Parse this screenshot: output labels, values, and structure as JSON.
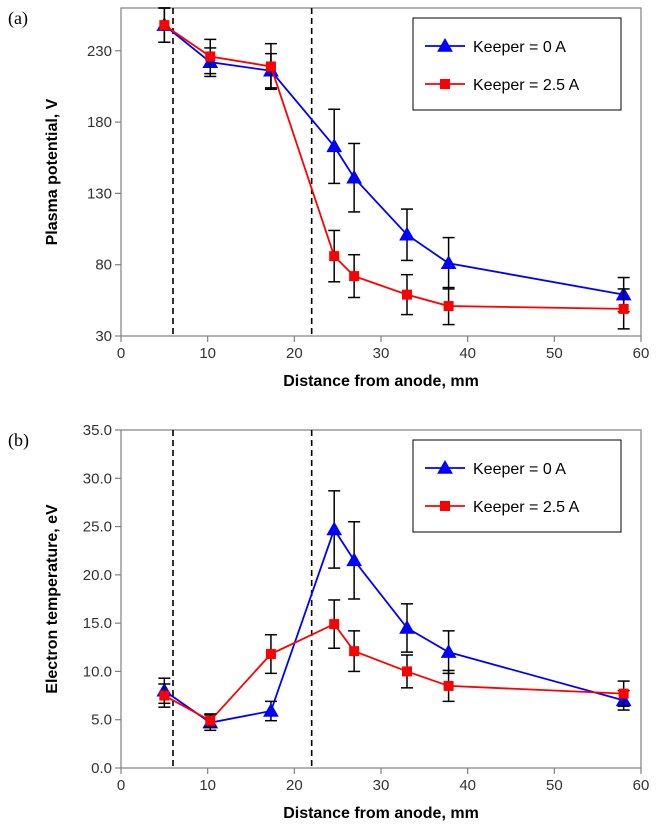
{
  "chart_data": [
    {
      "panel_label": "(a)",
      "type": "line",
      "xlabel": "Distance from anode, mm",
      "ylabel": "Plasma potential, V",
      "xlim": [
        0,
        60
      ],
      "ylim": [
        30,
        260
      ],
      "xticks": [
        0,
        10,
        20,
        30,
        40,
        50,
        60
      ],
      "yticks": [
        30,
        80,
        130,
        180,
        230
      ],
      "ytick_decimals": 0,
      "vlines": [
        6,
        22
      ],
      "legend": "top-right",
      "series": [
        {
          "name": "Keeper = 0 A",
          "color": "#0000ff",
          "marker": "triangle",
          "x": [
            5,
            10.3,
            17.3,
            24.6,
            26.9,
            33.0,
            37.8,
            58.0
          ],
          "y": [
            248,
            222,
            216,
            163,
            141,
            101,
            81,
            59
          ],
          "err": [
            12,
            10,
            12,
            26,
            24,
            18,
            18,
            12
          ]
        },
        {
          "name": "Keeper = 2.5 A",
          "color": "#ff0000",
          "marker": "square",
          "x": [
            5,
            10.3,
            17.3,
            24.6,
            26.9,
            33.0,
            37.8,
            58.0
          ],
          "y": [
            248,
            226,
            219,
            86,
            72,
            59,
            51,
            49
          ],
          "err": [
            12,
            12,
            16,
            18,
            15,
            14,
            13,
            14
          ]
        }
      ]
    },
    {
      "panel_label": "(b)",
      "type": "line",
      "xlabel": "Distance from anode, mm",
      "ylabel": "Electron temperature, eV",
      "xlim": [
        0,
        60
      ],
      "ylim": [
        0,
        35
      ],
      "xticks": [
        0,
        10,
        20,
        30,
        40,
        50,
        60
      ],
      "yticks": [
        0,
        5,
        10,
        15,
        20,
        25,
        30,
        35
      ],
      "ytick_decimals": 1,
      "vlines": [
        6,
        22
      ],
      "legend": "top-right",
      "series": [
        {
          "name": "Keeper = 0 A",
          "color": "#0000ff",
          "marker": "triangle",
          "x": [
            5,
            10.3,
            17.3,
            24.6,
            26.9,
            33.0,
            37.8,
            58.0
          ],
          "y": [
            8.0,
            4.7,
            5.9,
            24.7,
            21.5,
            14.5,
            12.0,
            7.0
          ],
          "err": [
            1.3,
            0.8,
            1.0,
            4.0,
            4.0,
            2.5,
            2.2,
            1.0
          ]
        },
        {
          "name": "Keeper = 2.5 A",
          "color": "#ff0000",
          "marker": "square",
          "x": [
            5,
            10.3,
            17.3,
            24.6,
            26.9,
            33.0,
            37.8,
            58.0
          ],
          "y": [
            7.5,
            4.9,
            11.8,
            14.9,
            12.1,
            10.0,
            8.5,
            7.7
          ],
          "err": [
            1.2,
            0.7,
            2.0,
            2.5,
            2.1,
            1.7,
            1.6,
            1.3
          ]
        }
      ]
    }
  ]
}
